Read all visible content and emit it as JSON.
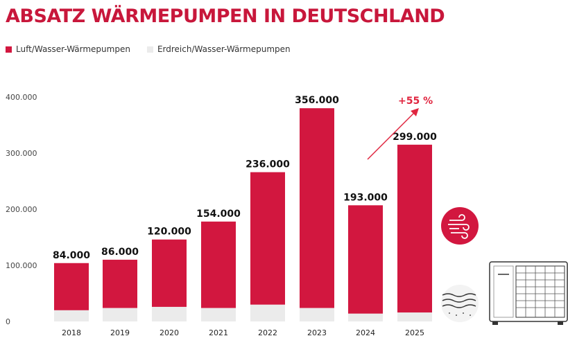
{
  "chart_data": {
    "type": "bar",
    "title": "ABSATZ WÄRMEPUMPEN IN DEUTSCHLAND",
    "categories": [
      "2018",
      "2019",
      "2020",
      "2021",
      "2022",
      "2023",
      "2024",
      "2025"
    ],
    "series": [
      {
        "name": "Luft/Wasser-Wärmepumpen",
        "values": [
          84000,
          86000,
          120000,
          154000,
          236000,
          356000,
          193000,
          299000
        ]
      },
      {
        "name": "Erdreich/Wasser-Wärmepumpen",
        "values": [
          20000,
          24000,
          26000,
          24000,
          30000,
          24000,
          14000,
          16000
        ]
      }
    ],
    "value_labels": [
      "84.000",
      "86.000",
      "120.000",
      "154.000",
      "236.000",
      "356.000",
      "193.000",
      "299.000"
    ],
    "y_ticks": [
      {
        "value": 0,
        "label": "0"
      },
      {
        "value": 100000,
        "label": "100.000"
      },
      {
        "value": 200000,
        "label": "200.000"
      },
      {
        "value": 300000,
        "label": "300.000"
      },
      {
        "value": 400000,
        "label": "400.000"
      }
    ],
    "ylim": [
      0,
      400000
    ],
    "xlabel": "",
    "ylabel": "",
    "legend_position": "top-left",
    "annotation": {
      "text": "+55 %",
      "from": "2024",
      "to": "2025"
    },
    "colors": {
      "primary": "#d2173f",
      "secondary": "#ebebeb",
      "title": "#c8173b",
      "annotation": "#e0253f"
    }
  },
  "icons": [
    "wind-icon",
    "ground-layers-icon",
    "heat-pump-unit-icon"
  ]
}
